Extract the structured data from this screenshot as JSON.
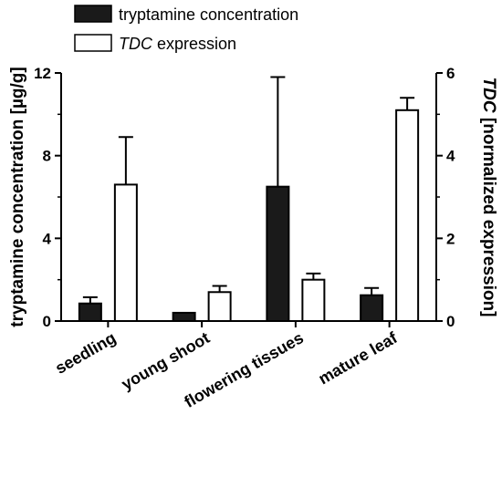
{
  "chart_data": {
    "type": "bar",
    "categories": [
      "seedling",
      "young shoot",
      "flowering tissues",
      "mature leaf"
    ],
    "series": [
      {
        "name": "tryptamine concentration",
        "axis": "left",
        "fill": "#1a1a1a",
        "values": [
          0.85,
          0.4,
          6.5,
          1.25
        ],
        "errors": [
          0.3,
          0.0,
          5.3,
          0.35
        ]
      },
      {
        "name_prefix": "TDC",
        "name_suffix": " expression",
        "axis": "right",
        "fill": "#ffffff",
        "values": [
          3.3,
          0.7,
          1.0,
          5.1
        ],
        "errors": [
          1.15,
          0.15,
          0.15,
          0.3
        ]
      }
    ],
    "left_axis": {
      "label": "tryptamine concentration [µg/g]",
      "ylim": [
        0,
        12
      ],
      "ticks": [
        "0",
        "4",
        "8",
        "12"
      ]
    },
    "right_axis": {
      "label_prefix": "TDC",
      "label_suffix": " [normalized expression]",
      "ylim": [
        0,
        6
      ],
      "ticks": [
        "0",
        "2",
        "4",
        "6"
      ]
    },
    "grid": false,
    "legend_position": "top-left"
  }
}
